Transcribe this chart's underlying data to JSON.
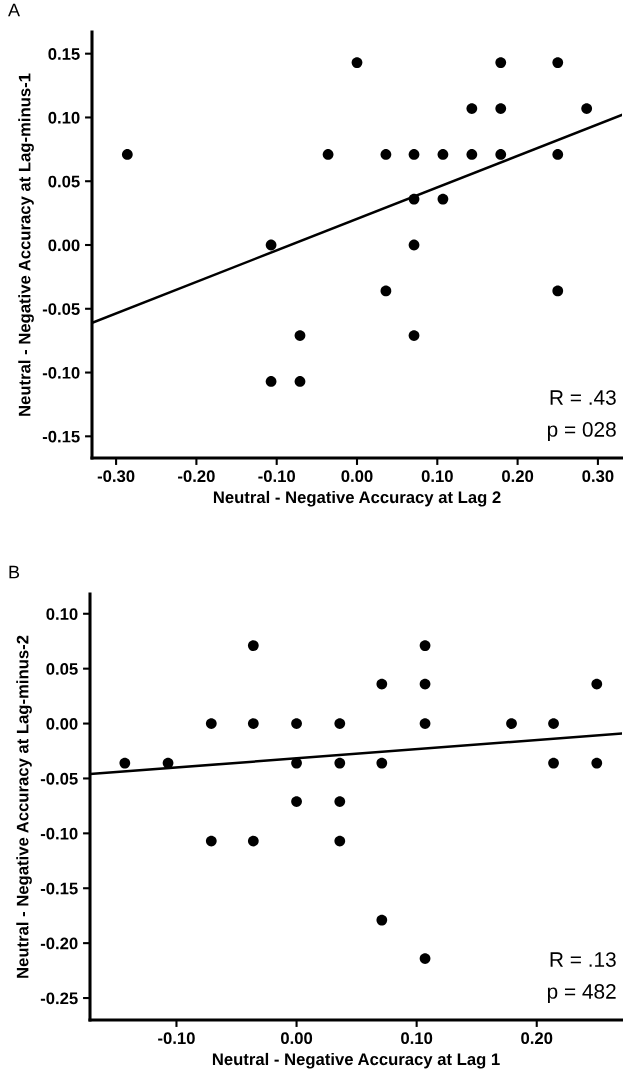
{
  "chart_data": [
    {
      "type": "scatter",
      "title": "A",
      "xlabel": "Neutral - Negative Accuracy at Lag 2",
      "ylabel": "Neutral - Negative Accuracy at Lag-minus-1",
      "series": [
        {
          "color": "#000000",
          "marker": "circle",
          "x": [
            -0.286,
            -0.107,
            -0.107,
            -0.071,
            -0.071,
            -0.036,
            0,
            0.036,
            0.036,
            0.071,
            0.071,
            0.071,
            0.071,
            0.107,
            0.107,
            0.143,
            0.143,
            0.179,
            0.179,
            0.179,
            0.25,
            0.25,
            0.25,
            0.286
          ],
          "values": [
            0.071,
            0,
            -0.107,
            -0.071,
            -0.107,
            0.071,
            0.143,
            0.071,
            -0.036,
            0.071,
            0.036,
            0,
            -0.071,
            0.071,
            0.036,
            0.107,
            0.071,
            0.143,
            0.107,
            0.071,
            0.143,
            0.071,
            -0.036,
            0.107
          ]
        },
        {
          "type": "line",
          "marker": "none",
          "color": "#000000",
          "x": [
            -0.33,
            0.33
          ],
          "values": [
            -0.061,
            0.102
          ]
        }
      ],
      "xlim": [
        -0.33,
        0.33
      ],
      "ylim": [
        -0.167,
        0.167
      ],
      "xticks": [
        {
          "value": -0.3,
          "label": "-0.30"
        },
        {
          "value": -0.2,
          "label": "-0.20"
        },
        {
          "value": -0.1,
          "label": "-0.10"
        },
        {
          "value": 0,
          "label": "0.00"
        },
        {
          "value": 0.1,
          "label": "0.10"
        },
        {
          "value": 0.2,
          "label": "0.20"
        },
        {
          "value": 0.3,
          "label": "0.30"
        }
      ],
      "yticks": [
        {
          "value": -0.15,
          "label": "-0.15"
        },
        {
          "value": -0.1,
          "label": "-0.10"
        },
        {
          "value": -0.05,
          "label": "-0.05"
        },
        {
          "value": 0,
          "label": "0.00"
        },
        {
          "value": 0.05,
          "label": "0.05"
        },
        {
          "value": 0.1,
          "label": "0.10"
        },
        {
          "value": 0.15,
          "label": "0.15"
        }
      ],
      "annotations": [
        "R = .43",
        "p = 028"
      ],
      "grid": false
    },
    {
      "type": "scatter",
      "title": "B",
      "xlabel": "Neutral - Negative Accuracy at Lag 1",
      "ylabel": "Neutral - Negative Accuracy at Lag-minus-2",
      "series": [
        {
          "color": "#000000",
          "marker": "circle",
          "x": [
            -0.143,
            -0.107,
            -0.071,
            -0.071,
            -0.036,
            -0.036,
            -0.036,
            0,
            0,
            0,
            0.036,
            0.036,
            0.036,
            0.036,
            0.071,
            0.071,
            0.071,
            0.107,
            0.107,
            0.107,
            0.107,
            0.179,
            0.214,
            0.214,
            0.25,
            0.25
          ],
          "values": [
            -0.036,
            -0.036,
            0,
            -0.107,
            0.071,
            0,
            -0.107,
            0,
            -0.036,
            -0.071,
            0,
            -0.036,
            -0.071,
            -0.107,
            0.036,
            -0.036,
            -0.179,
            0.071,
            0.036,
            0,
            -0.214,
            0,
            0,
            -0.036,
            0.036,
            -0.036
          ]
        },
        {
          "type": "line",
          "marker": "none",
          "color": "#000000",
          "x": [
            -0.172,
            0.271
          ],
          "values": [
            -0.046,
            -0.009
          ]
        }
      ],
      "xlim": [
        -0.172,
        0.271
      ],
      "ylim": [
        -0.27,
        0.118
      ],
      "xticks": [
        {
          "value": -0.1,
          "label": "-0.10"
        },
        {
          "value": 0,
          "label": "0.00"
        },
        {
          "value": 0.1,
          "label": "0.10"
        },
        {
          "value": 0.2,
          "label": "0.20"
        }
      ],
      "yticks": [
        {
          "value": -0.25,
          "label": "-0.25"
        },
        {
          "value": -0.2,
          "label": "-0.20"
        },
        {
          "value": -0.15,
          "label": "-0.15"
        },
        {
          "value": -0.1,
          "label": "-0.10"
        },
        {
          "value": -0.05,
          "label": "-0.05"
        },
        {
          "value": 0,
          "label": "0.00"
        },
        {
          "value": 0.05,
          "label": "0.05"
        },
        {
          "value": 0.1,
          "label": "0.10"
        }
      ],
      "annotations": [
        "R = .13",
        "p = 482"
      ],
      "grid": false
    }
  ]
}
